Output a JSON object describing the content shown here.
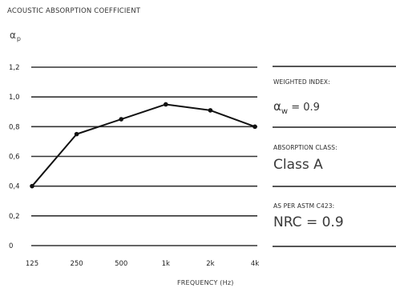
{
  "chart_data": {
    "type": "line",
    "title": "ACOUSTIC ABSORPTION COEFFICIENT",
    "y_symbol": "α",
    "y_symbol_sub": "p",
    "xlabel": "FREQUENCY (Hz)",
    "categories": [
      "125",
      "250",
      "500",
      "1k",
      "2k",
      "4k"
    ],
    "values": [
      0.4,
      0.75,
      0.85,
      0.95,
      0.91,
      0.8
    ],
    "y_ticks": [
      0,
      0.2,
      0.4,
      0.6,
      0.8,
      1.0,
      1.2
    ],
    "y_tick_labels": [
      "0",
      "0,2",
      "0,4",
      "0,6",
      "0,8",
      "1,0",
      "1,2"
    ],
    "ylim": [
      0,
      1.2
    ],
    "grid": true,
    "colors": {
      "line": "#111111",
      "grid": "#333333",
      "marker": "#111111"
    }
  },
  "side_panel": {
    "weighted_index": {
      "label": "WEIGHTED INDEX:",
      "symbol": "α",
      "symbol_sub": "w",
      "value_text": " = 0.9"
    },
    "absorption_class": {
      "label": "ABSORPTION CLASS:",
      "value": "Class A"
    },
    "nrc": {
      "label": "AS PER ASTM C423:",
      "value": "NRC = 0.9"
    }
  }
}
